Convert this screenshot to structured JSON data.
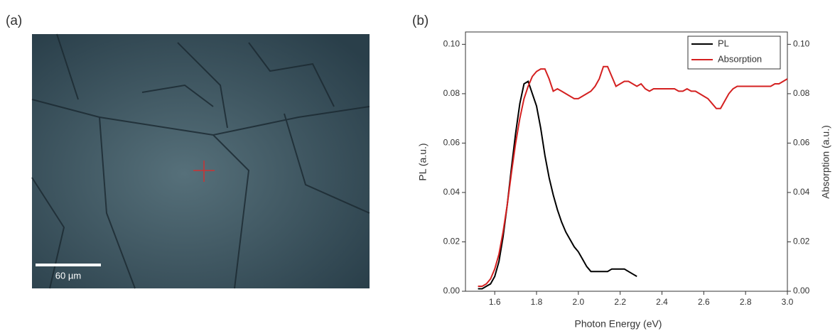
{
  "panel_a": {
    "label": "(a)",
    "scale_bar": "60 µm"
  },
  "panel_b": {
    "label": "(b)"
  },
  "chart_data": {
    "type": "line",
    "xlabel": "Photon Energy (eV)",
    "ylabel": "PL (a.u.)",
    "y2label": "Absorption (a.u.)",
    "x": [
      1.52,
      1.54,
      1.56,
      1.58,
      1.6,
      1.62,
      1.64,
      1.66,
      1.68,
      1.7,
      1.72,
      1.74,
      1.76,
      1.78,
      1.8,
      1.82,
      1.84,
      1.86,
      1.88,
      1.9,
      1.92,
      1.94,
      1.96,
      1.98,
      2.0,
      2.02,
      2.04,
      2.06,
      2.08,
      2.1,
      2.12,
      2.14,
      2.16,
      2.18,
      2.2,
      2.22,
      2.24,
      2.26,
      2.28,
      2.3,
      2.32,
      2.34,
      2.36,
      2.38,
      2.4,
      2.42,
      2.44,
      2.46,
      2.48,
      2.5,
      2.52,
      2.54,
      2.56,
      2.58,
      2.6,
      2.62,
      2.64,
      2.66,
      2.68,
      2.7,
      2.72,
      2.74,
      2.76,
      2.78,
      2.8,
      2.82,
      2.84,
      2.86,
      2.88,
      2.9,
      2.92,
      2.94,
      2.96,
      2.98,
      3.0
    ],
    "series": [
      {
        "name": "PL",
        "color": "#000000",
        "axis": "y",
        "values": [
          0.001,
          0.001,
          0.002,
          0.003,
          0.006,
          0.012,
          0.022,
          0.035,
          0.05,
          0.064,
          0.076,
          0.084,
          0.085,
          0.08,
          0.075,
          0.066,
          0.055,
          0.046,
          0.039,
          0.033,
          0.028,
          0.024,
          0.021,
          0.018,
          0.016,
          0.013,
          0.01,
          0.008,
          0.008,
          0.008,
          0.008,
          0.008,
          0.009,
          0.009,
          0.009,
          0.009,
          0.008,
          0.007,
          0.006,
          null,
          null,
          null,
          null,
          null,
          null,
          null,
          null,
          null,
          null,
          null,
          null,
          null,
          null,
          null,
          null,
          null,
          null,
          null,
          null,
          null,
          null,
          null,
          null,
          null,
          null,
          null,
          null,
          null,
          null,
          null,
          null,
          null,
          null,
          null,
          null
        ]
      },
      {
        "name": "Absorption",
        "color": "#d42020",
        "axis": "y2",
        "values": [
          0.002,
          0.002,
          0.003,
          0.005,
          0.009,
          0.015,
          0.024,
          0.035,
          0.048,
          0.06,
          0.07,
          0.078,
          0.083,
          0.087,
          0.089,
          0.09,
          0.09,
          0.086,
          0.081,
          0.082,
          0.081,
          0.08,
          0.079,
          0.078,
          0.078,
          0.079,
          0.08,
          0.081,
          0.083,
          0.086,
          0.091,
          0.091,
          0.087,
          0.083,
          0.084,
          0.085,
          0.085,
          0.084,
          0.083,
          0.084,
          0.082,
          0.081,
          0.082,
          0.082,
          0.082,
          0.082,
          0.082,
          0.082,
          0.081,
          0.081,
          0.082,
          0.081,
          0.081,
          0.08,
          0.079,
          0.078,
          0.076,
          0.074,
          0.074,
          0.077,
          0.08,
          0.082,
          0.083,
          0.083,
          0.083,
          0.083,
          0.083,
          0.083,
          0.083,
          0.083,
          0.083,
          0.084,
          0.084,
          0.085,
          0.086
        ]
      }
    ],
    "xlim": [
      1.46,
      3.0
    ],
    "xticks": [
      1.6,
      1.8,
      {
        "value": 2.0,
        "label": "2.0"
      },
      2.2,
      2.4,
      2.6,
      2.8,
      {
        "value": 3.0,
        "label": "3.0"
      }
    ],
    "ylim": [
      0,
      0.105
    ],
    "yticks": [
      {
        "value": 0,
        "label": "0.00"
      },
      {
        "value": 0.02,
        "label": "0.02"
      },
      {
        "value": 0.04,
        "label": "0.04"
      },
      {
        "value": 0.06,
        "label": "0.06"
      },
      {
        "value": 0.08,
        "label": "0.08"
      },
      {
        "value": 0.1,
        "label": "0.10"
      }
    ],
    "y2lim": [
      0,
      0.105
    ],
    "y2ticks": [
      {
        "value": 0,
        "label": "0.00"
      },
      {
        "value": 0.02,
        "label": "0.02"
      },
      {
        "value": 0.04,
        "label": "0.04"
      },
      {
        "value": 0.06,
        "label": "0.06"
      },
      {
        "value": 0.08,
        "label": "0.08"
      },
      {
        "value": 0.1,
        "label": "0.10"
      }
    ],
    "legend": "upper right"
  }
}
